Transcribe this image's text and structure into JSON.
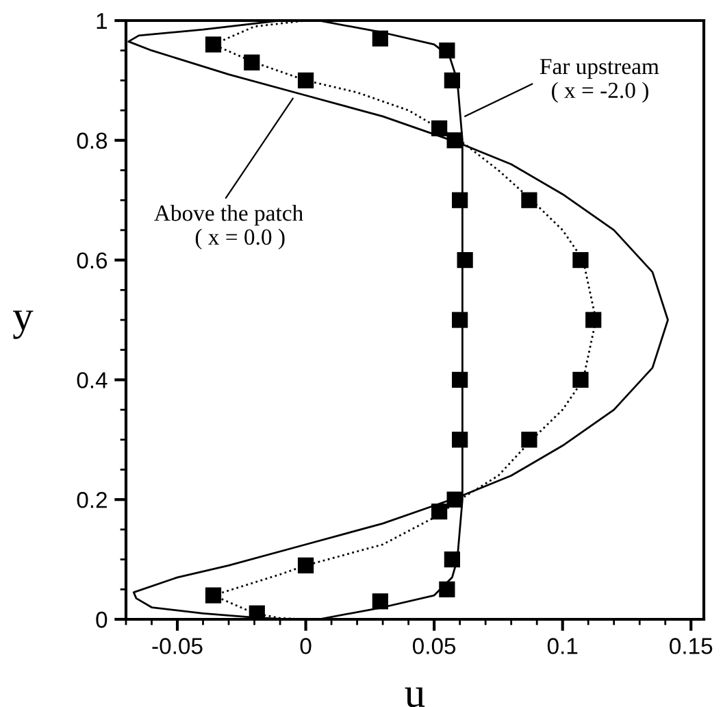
{
  "chart_data": {
    "type": "line",
    "xlabel": "u",
    "ylabel": "y",
    "xlim": [
      -0.07,
      0.155
    ],
    "ylim": [
      0,
      1
    ],
    "xticks": [
      -0.05,
      0,
      0.05,
      0.1,
      0.15
    ],
    "yticks": [
      0,
      0.2,
      0.4,
      0.6,
      0.8,
      1
    ],
    "grid": false,
    "legend": false,
    "series": [
      {
        "color": "#000000",
        "line_style": "solid",
        "marker": "none",
        "x": [
          0.005,
          0.03,
          0.05,
          0.057,
          0.059,
          0.06,
          0.061,
          0.061,
          0.061,
          0.06,
          0.059,
          0.056,
          0.05,
          0.03,
          0.005
        ],
        "values": [
          0,
          0.02,
          0.04,
          0.07,
          0.1,
          0.15,
          0.2,
          0.5,
          0.8,
          0.85,
          0.9,
          0.94,
          0.96,
          0.98,
          1.0
        ]
      },
      {
        "color": "#000000",
        "line_style": "solid",
        "marker": "none",
        "x": [
          -0.006,
          -0.02,
          -0.04,
          -0.06,
          -0.066,
          -0.067,
          -0.05,
          -0.03,
          0,
          0.03,
          0.05,
          0.06,
          0.08,
          0.1,
          0.12,
          0.135,
          0.141,
          0.135,
          0.12,
          0.1,
          0.08,
          0.06,
          0.03,
          0,
          -0.03,
          -0.06,
          -0.069,
          -0.065,
          -0.04,
          -0.01
        ],
        "values": [
          0,
          0.003,
          0.01,
          0.02,
          0.035,
          0.045,
          0.07,
          0.09,
          0.125,
          0.16,
          0.19,
          0.205,
          0.24,
          0.29,
          0.35,
          0.42,
          0.5,
          0.58,
          0.65,
          0.71,
          0.76,
          0.795,
          0.84,
          0.875,
          0.91,
          0.95,
          0.965,
          0.975,
          0.985,
          1.0
        ]
      },
      {
        "color": "#000000",
        "line_style": "dotted",
        "marker": "none",
        "x": [
          0,
          -0.01,
          -0.02,
          -0.036,
          -0.01,
          0,
          0.03,
          0.05,
          0.06,
          0.075,
          0.088,
          0.1,
          0.108,
          0.113,
          0.108,
          0.1,
          0.088,
          0.075,
          0.06,
          0.04,
          0.02,
          0,
          -0.02,
          -0.036,
          -0.02,
          0
        ],
        "values": [
          0,
          0.002,
          0.01,
          0.04,
          0.075,
          0.09,
          0.125,
          0.17,
          0.2,
          0.24,
          0.3,
          0.35,
          0.4,
          0.5,
          0.6,
          0.65,
          0.7,
          0.75,
          0.8,
          0.85,
          0.88,
          0.9,
          0.93,
          0.96,
          0.99,
          1.0
        ]
      },
      {
        "type": "scatter",
        "color": "#000000",
        "marker": "square",
        "x": [
          0.029,
          0.055,
          0.057,
          0.058,
          0.06,
          0.06,
          0.06,
          0.062,
          0.06,
          0.058,
          0.057,
          0.055,
          0.029
        ],
        "values": [
          0.03,
          0.05,
          0.1,
          0.2,
          0.3,
          0.4,
          0.5,
          0.6,
          0.7,
          0.8,
          0.9,
          0.95,
          0.97
        ]
      },
      {
        "type": "scatter",
        "color": "#000000",
        "marker": "square",
        "x": [
          -0.019,
          -0.036,
          0,
          0.052,
          0.087,
          0.107,
          0.112,
          0.107,
          0.087,
          0.052,
          0,
          -0.021,
          -0.036
        ],
        "values": [
          0.01,
          0.04,
          0.09,
          0.18,
          0.3,
          0.4,
          0.5,
          0.6,
          0.7,
          0.82,
          0.9,
          0.93,
          0.96
        ]
      }
    ],
    "annotations": [
      {
        "text": "Far upstream\n  ( x = -2.0 )",
        "x": 0.062,
        "y": 0.84
      },
      {
        "text": "Above the patch\n    ( x = 0.0 )",
        "x": -0.005,
        "y": 0.87
      }
    ]
  }
}
